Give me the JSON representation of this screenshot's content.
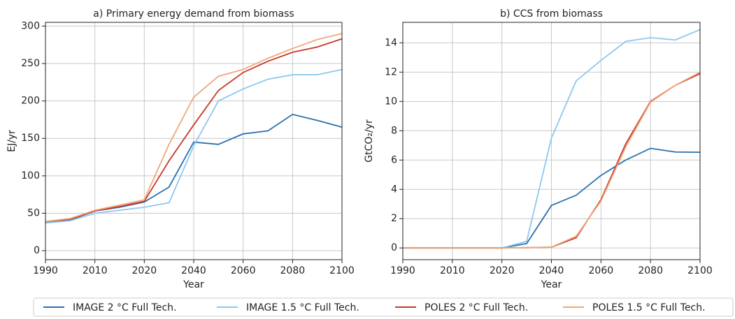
{
  "chart_data": [
    {
      "type": "line",
      "title": "a) Primary energy demand from biomass",
      "x_label": "Year",
      "y_label": "EJ/yr",
      "categories": [
        "1990",
        null,
        "2010",
        null,
        "2020",
        null,
        "2040",
        null,
        "2060",
        null,
        "2080",
        null,
        "2100"
      ],
      "ylim": [
        -12,
        305
      ],
      "yticks": [
        0,
        50,
        100,
        150,
        200,
        250,
        300
      ],
      "grid": true,
      "series": [
        {
          "name": "IMAGE 2 °C Full Tech.",
          "color": "#2a6fb0",
          "values": [
            38,
            41,
            53,
            58,
            65,
            85,
            145,
            142,
            156,
            160,
            182,
            174,
            165
          ]
        },
        {
          "name": "IMAGE 1.5 °C Full Tech.",
          "color": "#8cc8ee",
          "values": [
            37,
            40,
            50,
            54,
            58,
            64,
            140,
            200,
            216,
            229,
            235,
            235,
            242
          ]
        },
        {
          "name": "POLES 2 °C Full Tech.",
          "color": "#c8372a",
          "values": [
            39,
            42,
            53,
            59,
            66,
            120,
            168,
            214,
            238,
            253,
            265,
            272,
            283
          ]
        },
        {
          "name": "POLES 1.5 °C Full Tech.",
          "color": "#eea878",
          "values": [
            39,
            43,
            54,
            61,
            68,
            142,
            205,
            233,
            242,
            257,
            270,
            282,
            290
          ]
        }
      ]
    },
    {
      "type": "line",
      "title": "b) CCS from biomass",
      "x_label": "Year",
      "y_label": "GtCO₂/yr",
      "categories": [
        "1990",
        null,
        "2010",
        null,
        "2020",
        null,
        "2040",
        null,
        "2060",
        null,
        "2080",
        null,
        "2100"
      ],
      "ylim": [
        -0.8,
        15.4
      ],
      "yticks": [
        0,
        2,
        4,
        6,
        8,
        10,
        12,
        14
      ],
      "grid": true,
      "series": [
        {
          "color": "#2a6fb0",
          "values": [
            0,
            0,
            0,
            0,
            0,
            0.3,
            2.9,
            3.6,
            4.95,
            6.0,
            6.8,
            6.55,
            6.53
          ]
        },
        {
          "color": "#8cc8ee",
          "values": [
            0,
            0,
            0,
            0,
            0,
            0.45,
            7.5,
            11.4,
            12.8,
            14.1,
            14.35,
            14.2,
            14.9
          ]
        },
        {
          "color": "#c8372a",
          "values": [
            0,
            0,
            0,
            0,
            0,
            0.02,
            0.05,
            0.7,
            3.3,
            7.1,
            10.0,
            11.1,
            11.9
          ]
        },
        {
          "color": "#eea878",
          "values": [
            0,
            0,
            0,
            0,
            0,
            0.02,
            0.06,
            0.8,
            3.2,
            6.9,
            9.95,
            11.1,
            12.0
          ]
        }
      ]
    }
  ]
}
